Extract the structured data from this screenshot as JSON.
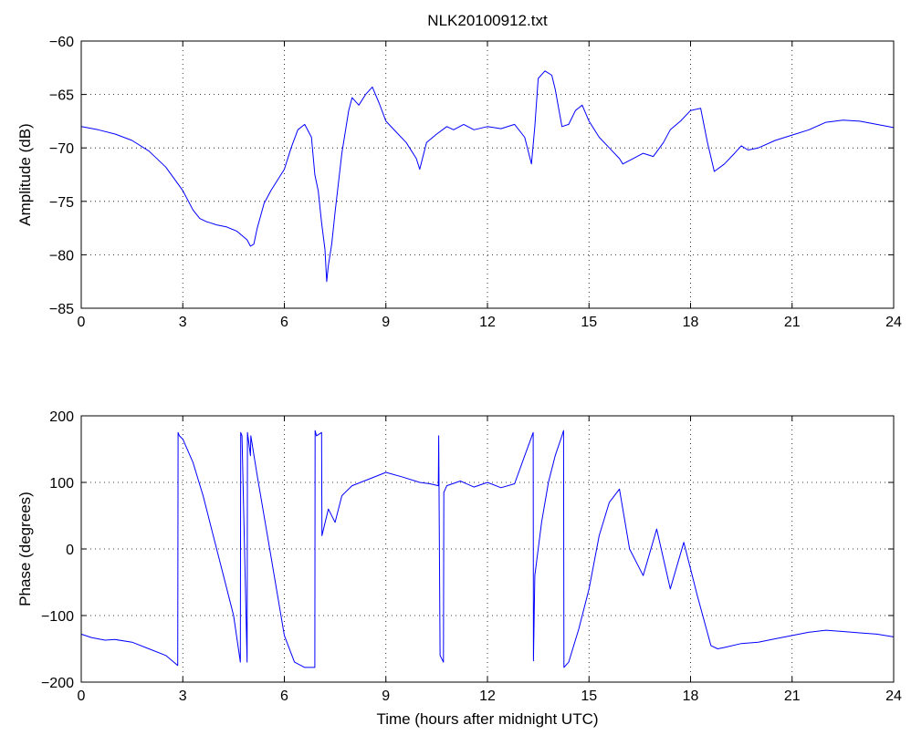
{
  "figure": {
    "title": "NLK20100912.txt",
    "line_color": "#0000ff"
  },
  "chart_data": [
    {
      "type": "line",
      "title": "NLK20100912.txt",
      "xlabel": "",
      "ylabel": "Amplitude (dB)",
      "xlim": [
        0,
        24
      ],
      "ylim": [
        -85,
        -60
      ],
      "xticks": [
        "0",
        "3",
        "6",
        "9",
        "12",
        "15",
        "18",
        "21",
        "24"
      ],
      "yticks": [
        "−85",
        "−80",
        "−75",
        "−70",
        "−65",
        "−60"
      ],
      "grid": true,
      "series": [
        {
          "x": [
            0,
            0.5,
            1.0,
            1.5,
            2.0,
            2.5,
            3.0,
            3.3,
            3.5,
            3.7,
            3.8,
            4.0,
            4.3,
            4.6,
            4.9,
            5.0,
            5.1,
            5.2,
            5.4,
            5.6,
            5.8,
            6.0,
            6.2,
            6.4,
            6.6,
            6.8,
            6.9,
            7.0,
            7.1,
            7.2,
            7.25,
            7.3,
            7.4,
            7.5,
            7.7,
            7.9,
            8.0,
            8.2,
            8.4,
            8.6,
            8.8,
            9.0,
            9.3,
            9.6,
            9.9,
            10.0,
            10.2,
            10.5,
            10.8,
            11.0,
            11.3,
            11.6,
            12.0,
            12.4,
            12.8,
            13.1,
            13.3,
            13.4,
            13.5,
            13.7,
            13.9,
            14.0,
            14.2,
            14.4,
            14.6,
            14.8,
            15.0,
            15.3,
            15.6,
            15.9,
            16.0,
            16.3,
            16.6,
            16.9,
            17.2,
            17.4,
            17.7,
            18.0,
            18.3,
            18.5,
            18.7,
            19.0,
            19.3,
            19.5,
            19.7,
            20.0,
            20.5,
            21.0,
            21.5,
            22.0,
            22.5,
            23.0,
            23.5,
            24.0
          ],
          "y": [
            -68,
            -68.3,
            -68.7,
            -69.3,
            -70.3,
            -71.8,
            -74.0,
            -75.8,
            -76.6,
            -76.9,
            -77.0,
            -77.2,
            -77.4,
            -77.8,
            -78.6,
            -79.2,
            -79.0,
            -77.5,
            -75.2,
            -74.0,
            -73.0,
            -72.0,
            -70.0,
            -68.3,
            -67.8,
            -69.0,
            -72.5,
            -74.0,
            -77.0,
            -79.5,
            -82.5,
            -81.0,
            -79.0,
            -76.0,
            -70.5,
            -66.5,
            -65.3,
            -66.0,
            -65.0,
            -64.3,
            -65.8,
            -67.5,
            -68.5,
            -69.5,
            -71.0,
            -72.0,
            -69.5,
            -68.7,
            -68.0,
            -68.3,
            -67.8,
            -68.3,
            -68.0,
            -68.2,
            -67.8,
            -69.0,
            -71.5,
            -68.0,
            -63.5,
            -62.8,
            -63.2,
            -64.5,
            -68.0,
            -67.8,
            -66.5,
            -66.0,
            -67.5,
            -69.0,
            -70.0,
            -71.0,
            -71.5,
            -71.0,
            -70.5,
            -70.8,
            -69.5,
            -68.3,
            -67.5,
            -66.5,
            -66.3,
            -69.5,
            -72.2,
            -71.5,
            -70.5,
            -69.8,
            -70.2,
            -70.0,
            -69.3,
            -68.8,
            -68.3,
            -67.6,
            -67.4,
            -67.5,
            -67.8,
            -68.1
          ]
        }
      ]
    },
    {
      "type": "line",
      "title": "",
      "xlabel": "Time (hours after midnight UTC)",
      "ylabel": "Phase (degrees)",
      "xlim": [
        0,
        24
      ],
      "ylim": [
        -200,
        200
      ],
      "xticks": [
        "0",
        "3",
        "6",
        "9",
        "12",
        "15",
        "18",
        "21",
        "24"
      ],
      "yticks": [
        "−200",
        "−100",
        "0",
        "100",
        "200"
      ],
      "grid": true,
      "series": [
        {
          "x": [
            0,
            0.3,
            0.7,
            1.0,
            1.5,
            2.0,
            2.5,
            2.85,
            2.86,
            2.9,
            3.0,
            3.3,
            3.6,
            3.9,
            4.2,
            4.5,
            4.7,
            4.71,
            4.75,
            4.9,
            4.91,
            5.0,
            5.01,
            5.2,
            5.5,
            5.8,
            6.0,
            6.3,
            6.6,
            6.9,
            6.91,
            6.95,
            7.1,
            7.11,
            7.3,
            7.5,
            7.7,
            8.0,
            8.5,
            9.0,
            9.5,
            10.0,
            10.3,
            10.55,
            10.56,
            10.6,
            10.7,
            10.71,
            10.8,
            11.2,
            11.6,
            12.0,
            12.4,
            12.8,
            13.1,
            13.35,
            13.36,
            13.4,
            13.6,
            13.8,
            14.0,
            14.2,
            14.25,
            14.26,
            14.4,
            14.7,
            15.0,
            15.3,
            15.6,
            15.9,
            16.2,
            16.6,
            17.0,
            17.4,
            17.8,
            18.2,
            18.6,
            18.8,
            19.0,
            19.5,
            20.0,
            20.5,
            21.0,
            21.5,
            22.0,
            22.5,
            23.0,
            23.5,
            24.0
          ],
          "y": [
            -128,
            -133,
            -137,
            -136,
            -140,
            -150,
            -160,
            -175,
            175,
            170,
            165,
            130,
            80,
            20,
            -40,
            -100,
            -170,
            175,
            170,
            -170,
            175,
            140,
            170,
            110,
            20,
            -70,
            -130,
            -170,
            -178,
            -178,
            178,
            170,
            175,
            20,
            60,
            40,
            80,
            95,
            105,
            115,
            108,
            100,
            98,
            95,
            170,
            -160,
            -170,
            85,
            95,
            102,
            93,
            100,
            92,
            98,
            140,
            175,
            -168,
            -40,
            40,
            100,
            140,
            170,
            178,
            -178,
            -170,
            -120,
            -60,
            20,
            70,
            90,
            0,
            -40,
            30,
            -60,
            10,
            -70,
            -145,
            -150,
            -148,
            -142,
            -140,
            -135,
            -130,
            -125,
            -122,
            -124,
            -126,
            -128,
            -132
          ]
        }
      ]
    }
  ]
}
